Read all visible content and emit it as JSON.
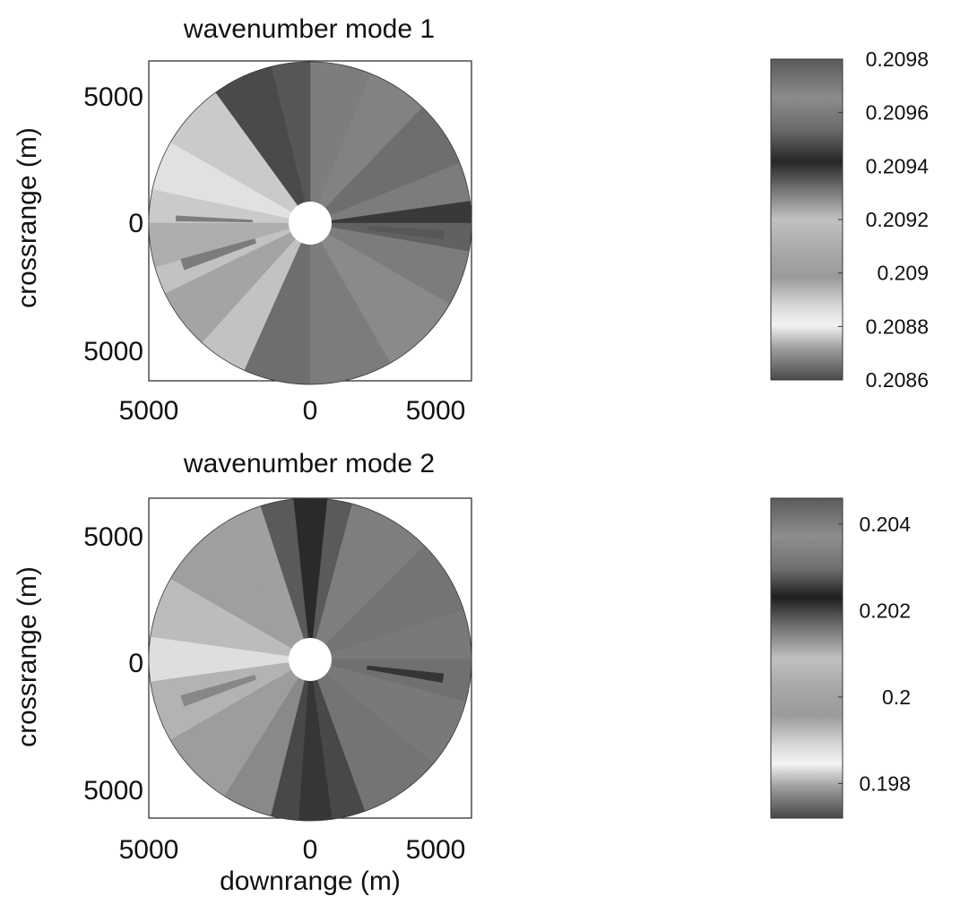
{
  "chart_data": [
    {
      "type": "heatmap",
      "title": "wavenumber  mode 1",
      "xlabel": "",
      "ylabel": "crossrange (m)",
      "x_ticks": [
        "5000",
        "0",
        "5000"
      ],
      "y_ticks": [
        "5000",
        "0",
        "5000"
      ],
      "colorbar": {
        "ticks": [
          "0.2098",
          "0.2096",
          "0.2094",
          "0.2092",
          "0.209",
          "0.2088",
          "0.2086"
        ],
        "range": [
          0.2086,
          0.2098
        ]
      },
      "sectors": [
        {
          "from_deg": 0,
          "to_deg": 8,
          "value": 0.20945
        },
        {
          "from_deg": 8,
          "to_deg": 22,
          "value": 0.2096
        },
        {
          "from_deg": 22,
          "to_deg": 46,
          "value": 0.20955
        },
        {
          "from_deg": 46,
          "to_deg": 68,
          "value": 0.20962
        },
        {
          "from_deg": 68,
          "to_deg": 90,
          "value": 0.2097
        },
        {
          "from_deg": 90,
          "to_deg": 104,
          "value": 0.2095
        },
        {
          "from_deg": 104,
          "to_deg": 126,
          "value": 0.20948
        },
        {
          "from_deg": 126,
          "to_deg": 150,
          "value": 0.2089
        },
        {
          "from_deg": 150,
          "to_deg": 168,
          "value": 0.20885
        },
        {
          "from_deg": 168,
          "to_deg": 180,
          "value": 0.2089
        },
        {
          "from_deg": 180,
          "to_deg": 196,
          "value": 0.20895
        },
        {
          "from_deg": 196,
          "to_deg": 206,
          "value": 0.2092
        },
        {
          "from_deg": 206,
          "to_deg": 228,
          "value": 0.20905
        },
        {
          "from_deg": 228,
          "to_deg": 246,
          "value": 0.2092
        },
        {
          "from_deg": 246,
          "to_deg": 270,
          "value": 0.20955
        },
        {
          "from_deg": 270,
          "to_deg": 300,
          "value": 0.2096
        },
        {
          "from_deg": 300,
          "to_deg": 330,
          "value": 0.20965
        },
        {
          "from_deg": 330,
          "to_deg": 350,
          "value": 0.2096
        },
        {
          "from_deg": 350,
          "to_deg": 360,
          "value": 0.20952
        }
      ],
      "streaks": [
        {
          "angle_deg": 198,
          "width_deg": 5,
          "value": 0.2096
        },
        {
          "angle_deg": 178,
          "width_deg": 2.5,
          "value": 0.2097
        },
        {
          "angle_deg": 355,
          "width_deg": 4,
          "value": 0.20935
        }
      ]
    },
    {
      "type": "heatmap",
      "title": "wavenumber  mode 2",
      "xlabel": "downrange (m)",
      "ylabel": "crossrange (m)",
      "x_ticks": [
        "5000",
        "0",
        "5000"
      ],
      "y_ticks": [
        "5000",
        "0",
        "5000"
      ],
      "colorbar": {
        "ticks": [
          "0.204",
          "0.202",
          "0.2",
          "0.198"
        ],
        "range": [
          0.1972,
          0.2046
        ]
      },
      "sectors": [
        {
          "from_deg": 0,
          "to_deg": 18,
          "value": 0.2033
        },
        {
          "from_deg": 18,
          "to_deg": 45,
          "value": 0.2032
        },
        {
          "from_deg": 45,
          "to_deg": 75,
          "value": 0.2034
        },
        {
          "from_deg": 75,
          "to_deg": 84,
          "value": 0.2028
        },
        {
          "from_deg": 84,
          "to_deg": 96,
          "value": 0.2022
        },
        {
          "from_deg": 96,
          "to_deg": 108,
          "value": 0.2028
        },
        {
          "from_deg": 108,
          "to_deg": 122,
          "value": 0.1995
        },
        {
          "from_deg": 122,
          "to_deg": 150,
          "value": 0.1998
        },
        {
          "from_deg": 150,
          "to_deg": 172,
          "value": 0.1992
        },
        {
          "from_deg": 172,
          "to_deg": 188,
          "value": 0.1988
        },
        {
          "from_deg": 188,
          "to_deg": 210,
          "value": 0.1993
        },
        {
          "from_deg": 210,
          "to_deg": 238,
          "value": 0.1997
        },
        {
          "from_deg": 238,
          "to_deg": 256,
          "value": 0.2014
        },
        {
          "from_deg": 256,
          "to_deg": 266,
          "value": 0.2026
        },
        {
          "from_deg": 266,
          "to_deg": 278,
          "value": 0.2021
        },
        {
          "from_deg": 278,
          "to_deg": 290,
          "value": 0.2026
        },
        {
          "from_deg": 290,
          "to_deg": 320,
          "value": 0.2032
        },
        {
          "from_deg": 320,
          "to_deg": 345,
          "value": 0.2033
        },
        {
          "from_deg": 345,
          "to_deg": 360,
          "value": 0.2031
        }
      ],
      "streaks": [
        {
          "angle_deg": 198,
          "width_deg": 5,
          "value": 0.2036
        },
        {
          "angle_deg": 352,
          "width_deg": 4,
          "value": 0.2024
        }
      ]
    }
  ]
}
